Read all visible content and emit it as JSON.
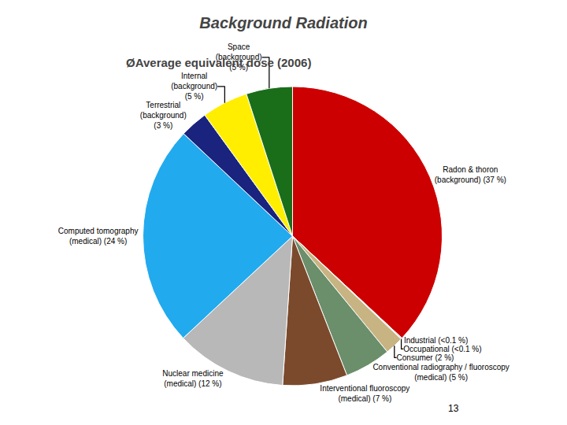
{
  "chart_data": {
    "type": "pie",
    "title": "Background Radiation",
    "subtitle": "ØAverage equivalent dose (2006)",
    "annotations": [
      "13"
    ],
    "categories": [
      "Radon & thoron\n(background) (37 %)",
      "Industrial (<0.1 %)",
      "Occupational (<0.1 %)",
      "Consumer (2 %)",
      "Conventional radiography / fluoroscopy\n(medical) (5 %)",
      "Interventional fluoroscopy\n(medical) (7 %)",
      "Nuclear medicine\n(medical) (12 %)",
      "Computed tomography\n(medical) (24 %)",
      "Terrestrial\n(background)\n(3 %)",
      "Internal\n(background)\n(5 %)",
      "Space\n(background)\n(5 %)"
    ],
    "values": [
      37,
      0.07,
      0.07,
      2,
      5,
      7,
      12,
      24,
      3,
      5,
      5
    ],
    "colors": [
      "#cc0000",
      "#b0b0b0",
      "#909090",
      "#c8b482",
      "#6b8e6b",
      "#7b4a2c",
      "#b8b8b8",
      "#22aaee",
      "#1a237e",
      "#ffee00",
      "#1a6e1a"
    ]
  }
}
